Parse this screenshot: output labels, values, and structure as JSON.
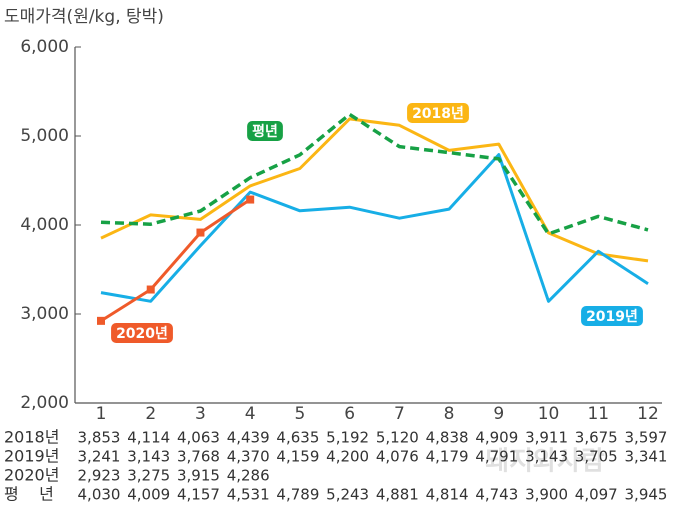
{
  "chart_data": {
    "type": "line",
    "title": "도매가격(원/kg, 탕박)",
    "categories": [
      "1",
      "2",
      "3",
      "4",
      "5",
      "6",
      "7",
      "8",
      "9",
      "10",
      "11",
      "12"
    ],
    "ylim": [
      2000,
      6000
    ],
    "yticks": [
      {
        "value": 2000,
        "label": "2,000"
      },
      {
        "value": 3000,
        "label": "3,000"
      },
      {
        "value": 4000,
        "label": "4,000"
      },
      {
        "value": 5000,
        "label": "5,000"
      },
      {
        "value": 6000,
        "label": "6,000"
      }
    ],
    "series": [
      {
        "name": "2018년",
        "row_label": "2018년",
        "color": "#fbb614",
        "dashed": false,
        "markers": false,
        "values": [
          3853,
          4114,
          4063,
          4439,
          4635,
          5192,
          5120,
          4838,
          4909,
          3911,
          3675,
          3597
        ],
        "value_labels": [
          "3,853",
          "4,114",
          "4,063",
          "4,439",
          "4,635",
          "5,192",
          "5,120",
          "4,838",
          "4,909",
          "3,911",
          "3,675",
          "3,597"
        ]
      },
      {
        "name": "2019년",
        "row_label": "2019년",
        "color": "#17aee6",
        "dashed": false,
        "markers": false,
        "values": [
          3241,
          3143,
          3768,
          4370,
          4159,
          4200,
          4076,
          4179,
          4791,
          3143,
          3705,
          3341
        ],
        "value_labels": [
          "3,241",
          "3,143",
          "3,768",
          "4,370",
          "4,159",
          "4,200",
          "4,076",
          "4,179",
          "4,791",
          "3,143",
          "3,705",
          "3,341"
        ]
      },
      {
        "name": "2020년",
        "row_label": "2020년",
        "color": "#ef5a2a",
        "dashed": false,
        "markers": true,
        "values": [
          2923,
          3275,
          3915,
          4286,
          null,
          null,
          null,
          null,
          null,
          null,
          null,
          null
        ],
        "value_labels": [
          "2,923",
          "3,275",
          "3,915",
          "4,286",
          null,
          null,
          null,
          null,
          null,
          null,
          null,
          null
        ]
      },
      {
        "name": "평년",
        "row_label": "평    년",
        "color": "#17a145",
        "dashed": true,
        "markers": false,
        "values": [
          4030,
          4009,
          4157,
          4531,
          4789,
          5243,
          4881,
          4814,
          4743,
          3900,
          4097,
          3945
        ],
        "value_labels": [
          "4,030",
          "4,009",
          "4,157",
          "4,531",
          "4,789",
          "5,243",
          "4,881",
          "4,814",
          "4,743",
          "3,900",
          "4,097",
          "3,945"
        ]
      }
    ],
    "watermark": "돼지와사람"
  }
}
